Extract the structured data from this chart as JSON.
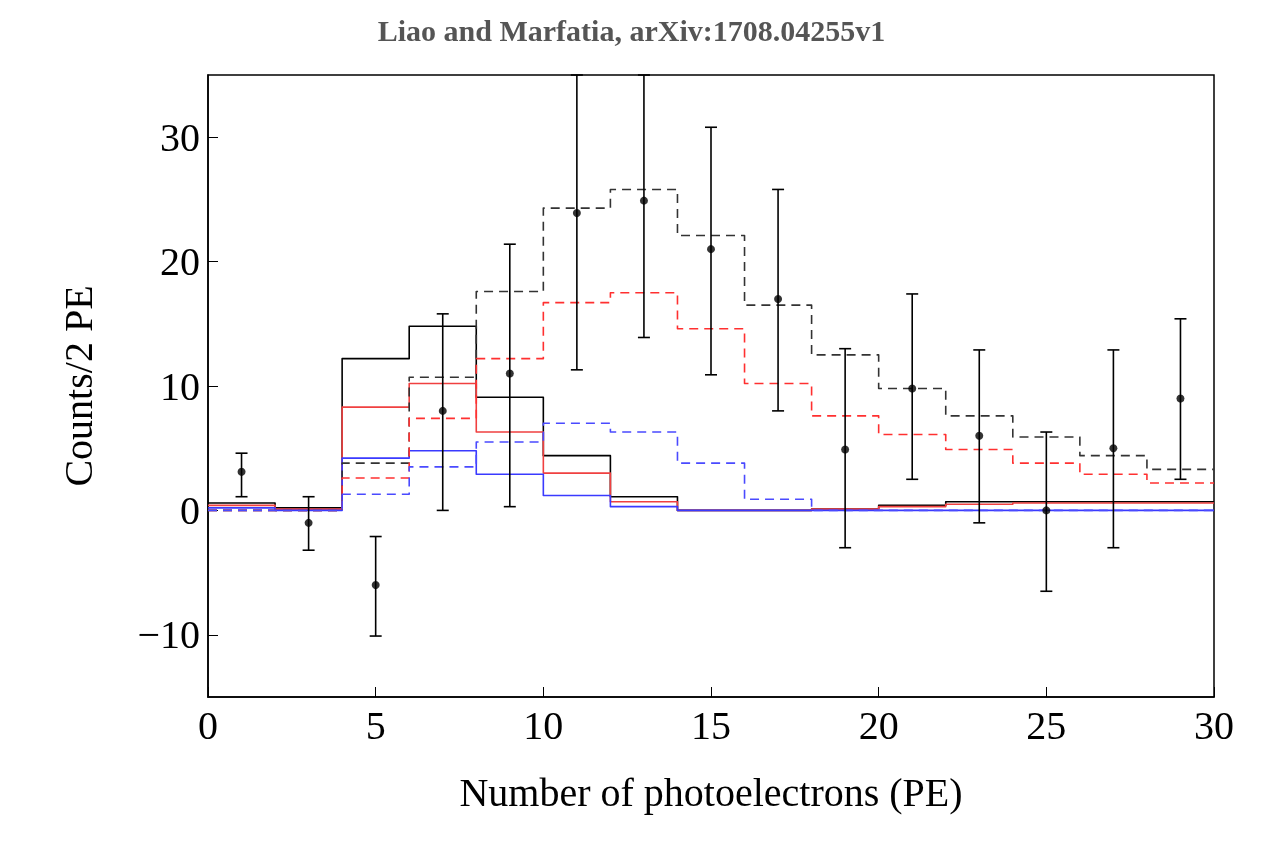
{
  "chart_data": {
    "type": "histogram",
    "title": "Liao and Marfatia, arXiv:1708.04255v1",
    "xlabel": "Number of photoelectrons (PE)",
    "ylabel": "Counts/2 PE",
    "bins": [
      0,
      2,
      4,
      6,
      8,
      10,
      12,
      14,
      16,
      18,
      20,
      22,
      24,
      26,
      28,
      30
    ],
    "series": [
      {
        "type": "histogram",
        "color": "#000000",
        "line_style": "solid",
        "values": [
          0.6,
          0.2,
          12.2,
          14.8,
          9.1,
          4.4,
          1.1,
          0,
          0,
          0.1,
          0.4,
          0.7,
          0.7,
          0.7,
          0.7
        ]
      },
      {
        "type": "histogram",
        "color": "#f04040",
        "line_style": "solid",
        "values": [
          0.4,
          0.1,
          8.3,
          10.2,
          6.3,
          3.0,
          0.7,
          0,
          0,
          0.1,
          0.3,
          0.5,
          0.6,
          0.6,
          0.6
        ]
      },
      {
        "type": "histogram",
        "color": "#3a3aff",
        "line_style": "solid",
        "values": [
          0.2,
          0,
          4.2,
          4.8,
          2.9,
          1.2,
          0.3,
          0,
          0,
          0,
          0,
          0,
          0,
          0,
          0
        ]
      },
      {
        "type": "histogram",
        "color": "#333333",
        "line_style": "dashed",
        "values": [
          0,
          0,
          3.8,
          10.7,
          17.6,
          24.3,
          25.8,
          22.1,
          16.5,
          12.5,
          9.8,
          7.6,
          5.9,
          4.4,
          3.3
        ]
      },
      {
        "type": "histogram",
        "color": "#ff3030",
        "line_style": "dashed",
        "values": [
          0,
          0,
          2.6,
          7.4,
          12.2,
          16.7,
          17.5,
          14.6,
          10.2,
          7.6,
          6.1,
          4.9,
          3.8,
          2.9,
          2.2
        ]
      },
      {
        "type": "histogram",
        "color": "#4a4aff",
        "line_style": "dashed",
        "values": [
          0,
          0,
          1.3,
          3.5,
          5.5,
          7.0,
          6.3,
          3.8,
          0.9,
          0,
          0,
          0,
          0,
          0,
          0
        ]
      },
      {
        "type": "scatter",
        "color": "#000000",
        "marker": "circle",
        "x": [
          1,
          3,
          5,
          7,
          9,
          11,
          13,
          15,
          17,
          19,
          21,
          23,
          25,
          27,
          29
        ],
        "values": [
          3.1,
          -1.0,
          -6.0,
          8.0,
          11.0,
          23.9,
          24.9,
          21.0,
          17.0,
          4.9,
          9.8,
          6.0,
          0,
          5.0,
          9.0
        ],
        "errors": [
          [
            1.1,
            4.6
          ],
          [
            -3.2,
            1.1
          ],
          [
            -10.1,
            -2.1
          ],
          [
            0,
            15.8
          ],
          [
            0.3,
            21.4
          ],
          [
            11.3,
            35
          ],
          [
            13.9,
            35
          ],
          [
            10.9,
            30.8
          ],
          [
            8.0,
            25.8
          ],
          [
            -3.0,
            13.0
          ],
          [
            2.5,
            17.4
          ],
          [
            -1.0,
            12.9
          ],
          [
            -6.5,
            6.3
          ],
          [
            -3.0,
            12.9
          ],
          [
            2.5,
            15.4
          ]
        ]
      }
    ],
    "xlim": [
      0,
      30
    ],
    "xticks": [
      0,
      5,
      10,
      15,
      20,
      25,
      30
    ],
    "ylim": [
      -15,
      35
    ],
    "yticks": [
      -10,
      0,
      10,
      20,
      30
    ],
    "grid": false
  }
}
